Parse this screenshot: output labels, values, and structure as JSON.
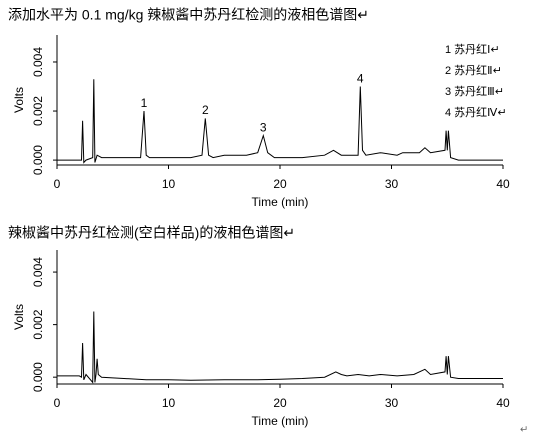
{
  "chart_data": [
    {
      "type": "line",
      "title": "添加水平为 0.1 mg/kg  辣椒酱中苏丹红检测的液相色谱图↵",
      "xlabel": "Time (min)",
      "ylabel": "Volts",
      "color": "#000000",
      "xlim": [
        0,
        40
      ],
      "xticks": [
        0,
        10,
        20,
        30,
        40
      ],
      "ylim": [
        -0.0002,
        0.0051
      ],
      "yticks": [
        {
          "value": 0,
          "label": "0.000"
        },
        {
          "value": 0.002,
          "label": "0.002"
        },
        {
          "value": 0.004,
          "label": "0.004"
        }
      ],
      "x": [
        0,
        2,
        2.2,
        2.3,
        2.4,
        2.6,
        3.2,
        3.3,
        3.4,
        3.6,
        4,
        6,
        7.5,
        7.8,
        8,
        8.3,
        10,
        12,
        13,
        13.3,
        13.6,
        14,
        15,
        17,
        18,
        18.5,
        18.9,
        19.5,
        22,
        24,
        24.8,
        25.5,
        27,
        27.2,
        27.4,
        27.7,
        29,
        30.5,
        31,
        32.5,
        33,
        33.5,
        34.8,
        34.9,
        35,
        35.1,
        35.3,
        36,
        40
      ],
      "values": [
        0,
        0,
        0,
        0.0016,
        -0.0001,
        0,
        0.0001,
        0.0033,
        -0.0001,
        0.0002,
        0.0001,
        0.0001,
        0.0001,
        0.002,
        0.0002,
        0.0001,
        0.0001,
        0.0001,
        0.0002,
        0.0017,
        0.0002,
        0.0001,
        0.0002,
        0.0002,
        0.0003,
        0.001,
        0.0003,
        0.0001,
        0.0001,
        0.0002,
        0.0004,
        0.0002,
        0.0002,
        0.003,
        0.0004,
        0.0002,
        0.0003,
        0.0002,
        0.0003,
        0.0003,
        0.0005,
        0.0003,
        0.0004,
        0.0012,
        0.0004,
        0.0012,
        0.0001,
        0,
        0
      ],
      "annotations": [
        {
          "text": "1",
          "x": 7.8,
          "y": 0.0023
        },
        {
          "text": "2",
          "x": 13.3,
          "y": 0.002
        },
        {
          "text": "3",
          "x": 18.5,
          "y": 0.0013
        },
        {
          "text": "4",
          "x": 27.2,
          "y": 0.0033
        }
      ],
      "legend_text": [
        "1 苏丹红Ⅰ↵",
        "2 苏丹红Ⅱ↵",
        "3 苏丹红Ⅲ↵",
        "4 苏丹红Ⅳ↵"
      ]
    },
    {
      "type": "line",
      "title": "辣椒酱中苏丹红检测(空白样品)的液相色谱图↵",
      "xlabel": "Time (min)",
      "ylabel": "Volts",
      "color": "#000000",
      "xlim": [
        0,
        40
      ],
      "xticks": [
        0,
        10,
        20,
        30,
        40
      ],
      "ylim": [
        -0.00026,
        0.00484
      ],
      "yticks": [
        {
          "value": 0,
          "label": "0.000"
        },
        {
          "value": 0.002,
          "label": "0.002"
        },
        {
          "value": 0.004,
          "label": "0.004"
        }
      ],
      "x": [
        0,
        2,
        2.2,
        2.3,
        2.4,
        2.6,
        3.2,
        3.3,
        3.4,
        3.5,
        3.6,
        3.7,
        4,
        6,
        8,
        10,
        12,
        15,
        18,
        20,
        22,
        24,
        25,
        25.5,
        26,
        27,
        28,
        29,
        30.5,
        32,
        33,
        33.5,
        34.8,
        34.9,
        35,
        35.1,
        35.3,
        36,
        40
      ],
      "values": [
        5e-05,
        5e-05,
        0,
        0.0013,
        -0.0001,
        0.0001,
        -0.0002,
        0.0025,
        -0.0002,
        0.0001,
        0.0007,
        0.0001,
        0,
        -5e-05,
        -0.0001,
        -0.0001,
        -0.00012,
        -0.0001,
        -0.0001,
        -8e-05,
        -5e-05,
        0,
        0.0002,
        0.0001,
        5e-05,
        0.0001,
        5e-05,
        0.0001,
        5e-05,
        0.0001,
        0.0003,
        0.0001,
        0.0002,
        0.0008,
        0.0001,
        0.0008,
        0,
        -5e-05,
        -5e-05
      ]
    }
  ],
  "footer": "↵"
}
